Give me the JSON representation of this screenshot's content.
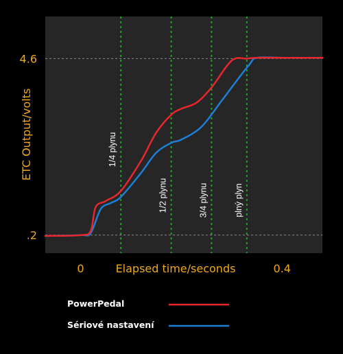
{
  "chart_data": {
    "type": "line",
    "xlabel": "Elapsed time/seconds",
    "ylabel": "ETC Output/volts",
    "x_ticks": [
      {
        "value": 0,
        "label": "0"
      },
      {
        "value": 0.4,
        "label": "0.4"
      }
    ],
    "y_ticks": [
      {
        "value": 0.2,
        "label": ".2"
      },
      {
        "value": 4.6,
        "label": "4.6"
      }
    ],
    "xlim": [
      -0.07,
      0.48
    ],
    "ylim": [
      -0.25,
      5.65
    ],
    "grid": "dashed reference lines at 0.2 and 4.6 volts",
    "legend_placement": "bottom",
    "markers": [
      {
        "x": 0.08,
        "label": "1/4 plynu"
      },
      {
        "x": 0.18,
        "label": "1/2 plynu"
      },
      {
        "x": 0.26,
        "label": "3/4 plynu"
      },
      {
        "x": 0.33,
        "label": "plný plyn"
      }
    ],
    "series": [
      {
        "name": "PowerPedal",
        "color": "#e8262d",
        "x": [
          -0.07,
          0.0,
          0.02,
          0.03,
          0.05,
          0.08,
          0.12,
          0.15,
          0.18,
          0.2,
          0.23,
          0.26,
          0.3,
          0.33,
          0.35,
          0.4,
          0.48
        ],
        "y": [
          0.18,
          0.2,
          0.3,
          0.9,
          1.05,
          1.3,
          2.05,
          2.75,
          3.2,
          3.35,
          3.5,
          3.88,
          4.55,
          4.6,
          4.62,
          4.62,
          4.62
        ]
      },
      {
        "name": "Sériové nastavení",
        "color": "#1e7fd6",
        "x": [
          -0.07,
          0.0,
          0.02,
          0.04,
          0.06,
          0.08,
          0.12,
          0.15,
          0.18,
          0.2,
          0.24,
          0.28,
          0.31,
          0.335,
          0.35,
          0.4,
          0.48
        ],
        "y": [
          0.18,
          0.2,
          0.25,
          0.85,
          1.0,
          1.15,
          1.75,
          2.25,
          2.5,
          2.58,
          2.9,
          3.55,
          4.05,
          4.45,
          4.62,
          4.62,
          4.62
        ]
      }
    ]
  },
  "colors": {
    "background": "#000000",
    "plot_background": "#262626",
    "axis_text": "#f0a81c",
    "marker_line": "#1fa12a",
    "reference_line": "#8a8a8a"
  }
}
